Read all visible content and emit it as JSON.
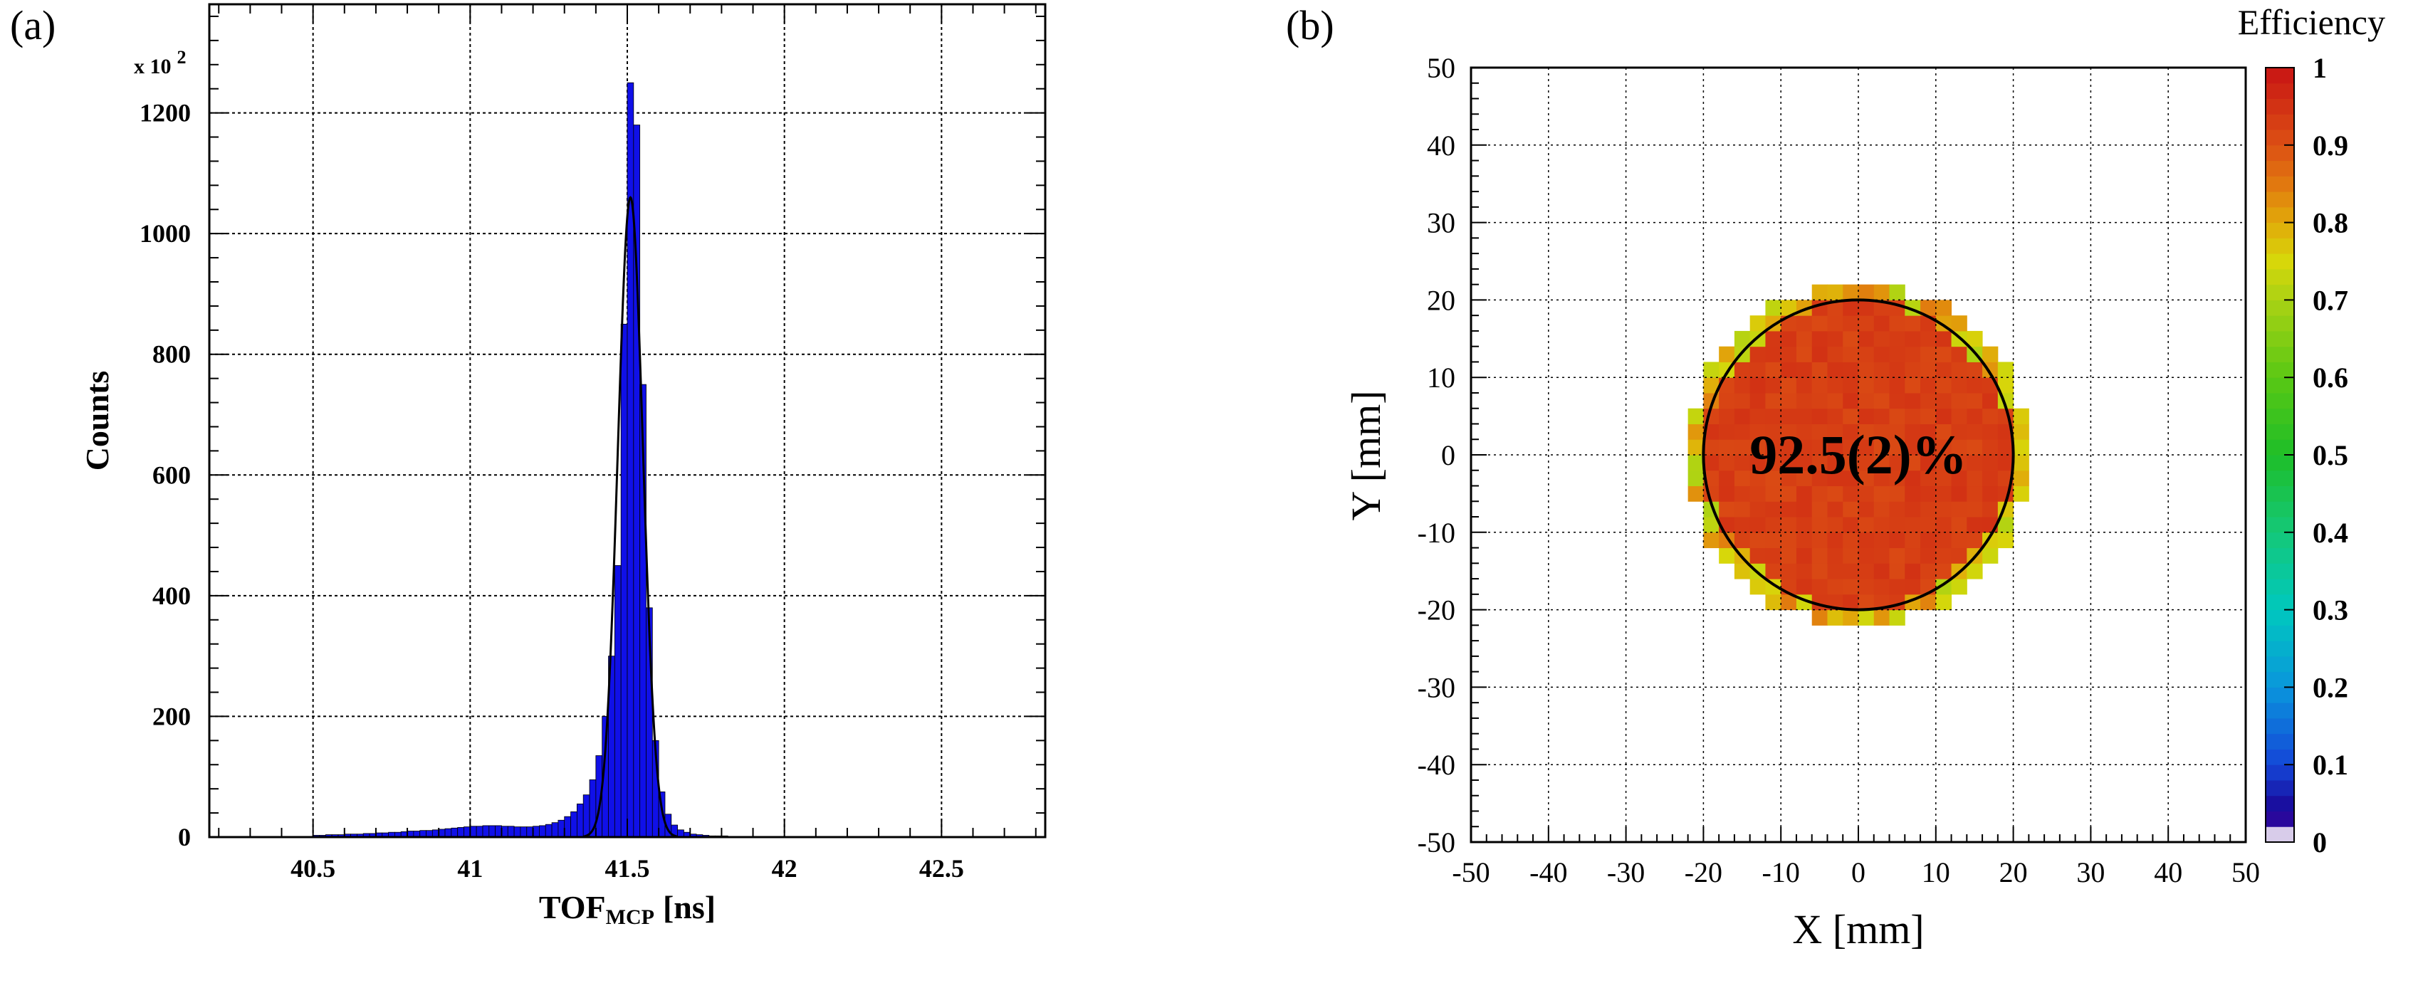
{
  "panel_a": {
    "label": "(a)",
    "exponent_prefix": "x 10",
    "exponent_power": "2",
    "xlabel_main": "TOF",
    "xlabel_sub": "MCP",
    "xlabel_unit": "[ns]",
    "ylabel": "Counts"
  },
  "panel_b": {
    "label": "(b)",
    "colorbar_title": "Efficiency",
    "annotation": "92.5(2)%",
    "xlabel": "X [mm]",
    "ylabel": "Y [mm]"
  },
  "colors": {
    "histogram_fill": "#1010e8",
    "fit_line": "#000000",
    "grid": "#000000",
    "map_main": "#d8421e",
    "circle": "#000000"
  },
  "chart_data": [
    {
      "type": "histogram",
      "title": "",
      "xlabel": "TOF_MCP [ns]",
      "ylabel": "Counts",
      "y_scale_factor": "x 10^2",
      "xlim": [
        40.17,
        42.83
      ],
      "ylim": [
        0,
        1380
      ],
      "xticks": [
        40.5,
        41,
        41.5,
        42,
        42.5
      ],
      "xtick_labels": [
        "40.5",
        "41",
        "41.5",
        "42",
        "42.5"
      ],
      "yticks": [
        0,
        200,
        400,
        600,
        800,
        1000,
        1200
      ],
      "ytick_labels": [
        "0",
        "200",
        "400",
        "600",
        "800",
        "1000",
        "1200"
      ],
      "grid": true,
      "bin_width": 0.02,
      "bins": [
        {
          "x": 40.5,
          "y": 3
        },
        {
          "x": 40.52,
          "y": 3
        },
        {
          "x": 40.54,
          "y": 4
        },
        {
          "x": 40.56,
          "y": 4
        },
        {
          "x": 40.58,
          "y": 4
        },
        {
          "x": 40.6,
          "y": 5
        },
        {
          "x": 40.62,
          "y": 5
        },
        {
          "x": 40.64,
          "y": 5
        },
        {
          "x": 40.66,
          "y": 6
        },
        {
          "x": 40.68,
          "y": 6
        },
        {
          "x": 40.7,
          "y": 7
        },
        {
          "x": 40.72,
          "y": 7
        },
        {
          "x": 40.74,
          "y": 8
        },
        {
          "x": 40.76,
          "y": 8
        },
        {
          "x": 40.78,
          "y": 9
        },
        {
          "x": 40.8,
          "y": 10
        },
        {
          "x": 40.82,
          "y": 10
        },
        {
          "x": 40.84,
          "y": 11
        },
        {
          "x": 40.86,
          "y": 11
        },
        {
          "x": 40.88,
          "y": 12
        },
        {
          "x": 40.9,
          "y": 13
        },
        {
          "x": 40.92,
          "y": 14
        },
        {
          "x": 40.94,
          "y": 15
        },
        {
          "x": 40.96,
          "y": 16
        },
        {
          "x": 40.98,
          "y": 17
        },
        {
          "x": 41.0,
          "y": 18
        },
        {
          "x": 41.02,
          "y": 18
        },
        {
          "x": 41.04,
          "y": 19
        },
        {
          "x": 41.06,
          "y": 19
        },
        {
          "x": 41.08,
          "y": 19
        },
        {
          "x": 41.1,
          "y": 18
        },
        {
          "x": 41.12,
          "y": 18
        },
        {
          "x": 41.14,
          "y": 17
        },
        {
          "x": 41.16,
          "y": 17
        },
        {
          "x": 41.18,
          "y": 17
        },
        {
          "x": 41.2,
          "y": 18
        },
        {
          "x": 41.22,
          "y": 19
        },
        {
          "x": 41.24,
          "y": 21
        },
        {
          "x": 41.26,
          "y": 24
        },
        {
          "x": 41.28,
          "y": 28
        },
        {
          "x": 41.3,
          "y": 34
        },
        {
          "x": 41.32,
          "y": 42
        },
        {
          "x": 41.34,
          "y": 55
        },
        {
          "x": 41.36,
          "y": 70
        },
        {
          "x": 41.38,
          "y": 95
        },
        {
          "x": 41.4,
          "y": 135
        },
        {
          "x": 41.42,
          "y": 200
        },
        {
          "x": 41.44,
          "y": 300
        },
        {
          "x": 41.46,
          "y": 450
        },
        {
          "x": 41.48,
          "y": 850
        },
        {
          "x": 41.5,
          "y": 1250
        },
        {
          "x": 41.52,
          "y": 1180
        },
        {
          "x": 41.54,
          "y": 750
        },
        {
          "x": 41.56,
          "y": 380
        },
        {
          "x": 41.58,
          "y": 160
        },
        {
          "x": 41.6,
          "y": 75
        },
        {
          "x": 41.62,
          "y": 38
        },
        {
          "x": 41.64,
          "y": 20
        },
        {
          "x": 41.66,
          "y": 12
        },
        {
          "x": 41.68,
          "y": 8
        },
        {
          "x": 41.7,
          "y": 5
        },
        {
          "x": 41.72,
          "y": 4
        },
        {
          "x": 41.74,
          "y": 3
        },
        {
          "x": 41.76,
          "y": 2
        },
        {
          "x": 41.78,
          "y": 2
        },
        {
          "x": 41.8,
          "y": 2
        },
        {
          "x": 41.82,
          "y": 1
        },
        {
          "x": 41.84,
          "y": 1
        },
        {
          "x": 41.86,
          "y": 1
        },
        {
          "x": 41.88,
          "y": 1
        }
      ],
      "fit": {
        "type": "gaussian",
        "mean": 41.51,
        "sigma": 0.04,
        "amplitude": 1060,
        "x_range": [
          41.36,
          41.66
        ]
      }
    },
    {
      "type": "heatmap",
      "title": "",
      "xlabel": "X [mm]",
      "ylabel": "Y [mm]",
      "xlim": [
        -50,
        50
      ],
      "ylim": [
        -50,
        50
      ],
      "xticks": [
        -50,
        -40,
        -30,
        -20,
        -10,
        0,
        10,
        20,
        30,
        40,
        50
      ],
      "xtick_labels": [
        "-50",
        "-40",
        "-30",
        "-20",
        "-10",
        "0",
        "10",
        "20",
        "30",
        "40",
        "50"
      ],
      "yticks": [
        -50,
        -40,
        -30,
        -20,
        -10,
        0,
        10,
        20,
        30,
        40,
        50
      ],
      "ytick_labels": [
        "-50",
        "-40",
        "-30",
        "-20",
        "-10",
        "0",
        "10",
        "20",
        "30",
        "40",
        "50"
      ],
      "grid": true,
      "bin_size": 2,
      "colorbar": {
        "title": "Efficiency",
        "range": [
          0,
          1
        ],
        "ticks": [
          0,
          0.1,
          0.2,
          0.3,
          0.4,
          0.5,
          0.6,
          0.7,
          0.8,
          0.9,
          1
        ],
        "tick_labels": [
          "0",
          "0.1",
          "0.2",
          "0.3",
          "0.4",
          "0.5",
          "0.6",
          "0.7",
          "0.8",
          "0.9",
          "1"
        ]
      },
      "region": {
        "shape": "disk",
        "center": [
          0,
          0
        ],
        "radius": 22,
        "core_efficiency": 0.93,
        "edge_efficiency": 0.7
      },
      "circle": {
        "center": [
          0,
          0
        ],
        "radius": 20
      },
      "annotation": "92.5(2)%",
      "mean_efficiency_percent": 92.5
    }
  ]
}
